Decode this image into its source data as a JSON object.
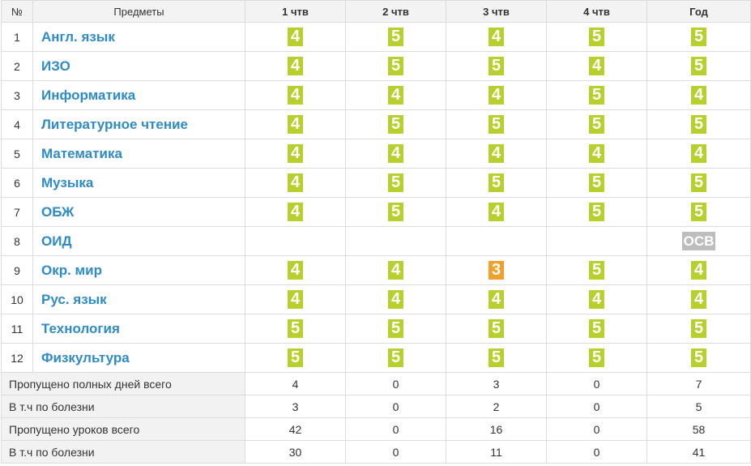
{
  "header": {
    "num": "№",
    "subject": "Предметы",
    "q1": "1 чтв",
    "q2": "2 чтв",
    "q3": "3 чтв",
    "q4": "4 чтв",
    "year": "Год"
  },
  "colors": {
    "good": "#b9cf2e",
    "bad": "#f2a02c",
    "osv": "#bdbdbd",
    "link": "#2e8bc8"
  },
  "subjects": [
    {
      "num": "1",
      "name": "Англ. язык",
      "marks": [
        "4",
        "5",
        "4",
        "5",
        "5"
      ]
    },
    {
      "num": "2",
      "name": "ИЗО",
      "marks": [
        "4",
        "5",
        "5",
        "4",
        "5"
      ]
    },
    {
      "num": "3",
      "name": "Информатика",
      "marks": [
        "4",
        "4",
        "4",
        "5",
        "4"
      ]
    },
    {
      "num": "4",
      "name": "Литературное чтение",
      "marks": [
        "4",
        "5",
        "5",
        "5",
        "5"
      ]
    },
    {
      "num": "5",
      "name": "Математика",
      "marks": [
        "4",
        "4",
        "4",
        "4",
        "4"
      ]
    },
    {
      "num": "6",
      "name": "Музыка",
      "marks": [
        "4",
        "5",
        "5",
        "5",
        "5"
      ]
    },
    {
      "num": "7",
      "name": "ОБЖ",
      "marks": [
        "4",
        "5",
        "4",
        "5",
        "5"
      ]
    },
    {
      "num": "8",
      "name": "ОИД",
      "marks": [
        "",
        "",
        "",
        "",
        "ОСВ"
      ]
    },
    {
      "num": "9",
      "name": "Окр. мир",
      "marks": [
        "4",
        "4",
        "3",
        "5",
        "4"
      ]
    },
    {
      "num": "10",
      "name": "Рус. язык",
      "marks": [
        "4",
        "4",
        "4",
        "4",
        "4"
      ]
    },
    {
      "num": "11",
      "name": "Технология",
      "marks": [
        "5",
        "5",
        "5",
        "5",
        "5"
      ]
    },
    {
      "num": "12",
      "name": "Физкультура",
      "marks": [
        "5",
        "5",
        "5",
        "5",
        "5"
      ]
    }
  ],
  "stats": [
    {
      "label": "Пропущено полных дней всего",
      "values": [
        "4",
        "0",
        "3",
        "0",
        "7"
      ]
    },
    {
      "label": "В т.ч по болезни",
      "values": [
        "3",
        "0",
        "2",
        "0",
        "5"
      ]
    },
    {
      "label": "Пропущено уроков всего",
      "values": [
        "42",
        "0",
        "16",
        "0",
        "58"
      ]
    },
    {
      "label": "В т.ч по болезни",
      "values": [
        "30",
        "0",
        "11",
        "0",
        "41"
      ]
    }
  ]
}
